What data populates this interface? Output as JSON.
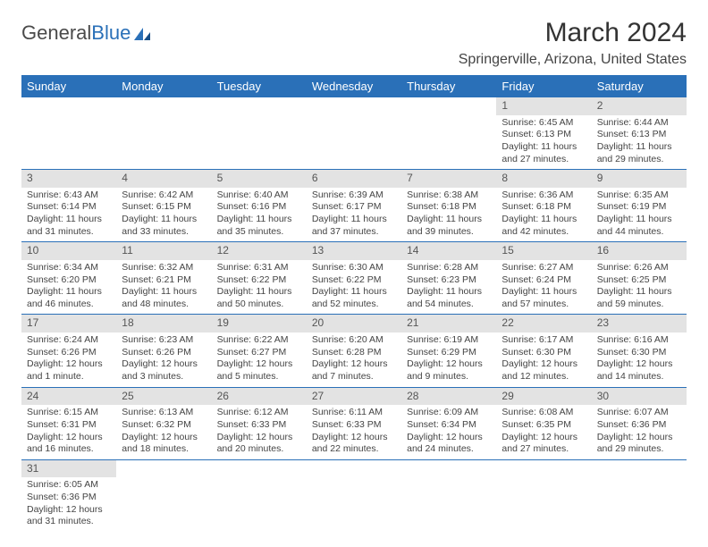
{
  "brand": {
    "general": "General",
    "blue": "Blue"
  },
  "title": "March 2024",
  "location": "Springerville, Arizona, United States",
  "columns": [
    "Sunday",
    "Monday",
    "Tuesday",
    "Wednesday",
    "Thursday",
    "Friday",
    "Saturday"
  ],
  "colors": {
    "header_bg": "#2a70b8",
    "header_text": "#ffffff",
    "daynum_bg": "#e3e3e3",
    "border": "#2a70b8",
    "text": "#444444"
  },
  "weeks": [
    [
      null,
      null,
      null,
      null,
      null,
      {
        "n": "1",
        "sr": "Sunrise: 6:45 AM",
        "ss": "Sunset: 6:13 PM",
        "dl1": "Daylight: 11 hours",
        "dl2": "and 27 minutes."
      },
      {
        "n": "2",
        "sr": "Sunrise: 6:44 AM",
        "ss": "Sunset: 6:13 PM",
        "dl1": "Daylight: 11 hours",
        "dl2": "and 29 minutes."
      }
    ],
    [
      {
        "n": "3",
        "sr": "Sunrise: 6:43 AM",
        "ss": "Sunset: 6:14 PM",
        "dl1": "Daylight: 11 hours",
        "dl2": "and 31 minutes."
      },
      {
        "n": "4",
        "sr": "Sunrise: 6:42 AM",
        "ss": "Sunset: 6:15 PM",
        "dl1": "Daylight: 11 hours",
        "dl2": "and 33 minutes."
      },
      {
        "n": "5",
        "sr": "Sunrise: 6:40 AM",
        "ss": "Sunset: 6:16 PM",
        "dl1": "Daylight: 11 hours",
        "dl2": "and 35 minutes."
      },
      {
        "n": "6",
        "sr": "Sunrise: 6:39 AM",
        "ss": "Sunset: 6:17 PM",
        "dl1": "Daylight: 11 hours",
        "dl2": "and 37 minutes."
      },
      {
        "n": "7",
        "sr": "Sunrise: 6:38 AM",
        "ss": "Sunset: 6:18 PM",
        "dl1": "Daylight: 11 hours",
        "dl2": "and 39 minutes."
      },
      {
        "n": "8",
        "sr": "Sunrise: 6:36 AM",
        "ss": "Sunset: 6:18 PM",
        "dl1": "Daylight: 11 hours",
        "dl2": "and 42 minutes."
      },
      {
        "n": "9",
        "sr": "Sunrise: 6:35 AM",
        "ss": "Sunset: 6:19 PM",
        "dl1": "Daylight: 11 hours",
        "dl2": "and 44 minutes."
      }
    ],
    [
      {
        "n": "10",
        "sr": "Sunrise: 6:34 AM",
        "ss": "Sunset: 6:20 PM",
        "dl1": "Daylight: 11 hours",
        "dl2": "and 46 minutes."
      },
      {
        "n": "11",
        "sr": "Sunrise: 6:32 AM",
        "ss": "Sunset: 6:21 PM",
        "dl1": "Daylight: 11 hours",
        "dl2": "and 48 minutes."
      },
      {
        "n": "12",
        "sr": "Sunrise: 6:31 AM",
        "ss": "Sunset: 6:22 PM",
        "dl1": "Daylight: 11 hours",
        "dl2": "and 50 minutes."
      },
      {
        "n": "13",
        "sr": "Sunrise: 6:30 AM",
        "ss": "Sunset: 6:22 PM",
        "dl1": "Daylight: 11 hours",
        "dl2": "and 52 minutes."
      },
      {
        "n": "14",
        "sr": "Sunrise: 6:28 AM",
        "ss": "Sunset: 6:23 PM",
        "dl1": "Daylight: 11 hours",
        "dl2": "and 54 minutes."
      },
      {
        "n": "15",
        "sr": "Sunrise: 6:27 AM",
        "ss": "Sunset: 6:24 PM",
        "dl1": "Daylight: 11 hours",
        "dl2": "and 57 minutes."
      },
      {
        "n": "16",
        "sr": "Sunrise: 6:26 AM",
        "ss": "Sunset: 6:25 PM",
        "dl1": "Daylight: 11 hours",
        "dl2": "and 59 minutes."
      }
    ],
    [
      {
        "n": "17",
        "sr": "Sunrise: 6:24 AM",
        "ss": "Sunset: 6:26 PM",
        "dl1": "Daylight: 12 hours",
        "dl2": "and 1 minute."
      },
      {
        "n": "18",
        "sr": "Sunrise: 6:23 AM",
        "ss": "Sunset: 6:26 PM",
        "dl1": "Daylight: 12 hours",
        "dl2": "and 3 minutes."
      },
      {
        "n": "19",
        "sr": "Sunrise: 6:22 AM",
        "ss": "Sunset: 6:27 PM",
        "dl1": "Daylight: 12 hours",
        "dl2": "and 5 minutes."
      },
      {
        "n": "20",
        "sr": "Sunrise: 6:20 AM",
        "ss": "Sunset: 6:28 PM",
        "dl1": "Daylight: 12 hours",
        "dl2": "and 7 minutes."
      },
      {
        "n": "21",
        "sr": "Sunrise: 6:19 AM",
        "ss": "Sunset: 6:29 PM",
        "dl1": "Daylight: 12 hours",
        "dl2": "and 9 minutes."
      },
      {
        "n": "22",
        "sr": "Sunrise: 6:17 AM",
        "ss": "Sunset: 6:30 PM",
        "dl1": "Daylight: 12 hours",
        "dl2": "and 12 minutes."
      },
      {
        "n": "23",
        "sr": "Sunrise: 6:16 AM",
        "ss": "Sunset: 6:30 PM",
        "dl1": "Daylight: 12 hours",
        "dl2": "and 14 minutes."
      }
    ],
    [
      {
        "n": "24",
        "sr": "Sunrise: 6:15 AM",
        "ss": "Sunset: 6:31 PM",
        "dl1": "Daylight: 12 hours",
        "dl2": "and 16 minutes."
      },
      {
        "n": "25",
        "sr": "Sunrise: 6:13 AM",
        "ss": "Sunset: 6:32 PM",
        "dl1": "Daylight: 12 hours",
        "dl2": "and 18 minutes."
      },
      {
        "n": "26",
        "sr": "Sunrise: 6:12 AM",
        "ss": "Sunset: 6:33 PM",
        "dl1": "Daylight: 12 hours",
        "dl2": "and 20 minutes."
      },
      {
        "n": "27",
        "sr": "Sunrise: 6:11 AM",
        "ss": "Sunset: 6:33 PM",
        "dl1": "Daylight: 12 hours",
        "dl2": "and 22 minutes."
      },
      {
        "n": "28",
        "sr": "Sunrise: 6:09 AM",
        "ss": "Sunset: 6:34 PM",
        "dl1": "Daylight: 12 hours",
        "dl2": "and 24 minutes."
      },
      {
        "n": "29",
        "sr": "Sunrise: 6:08 AM",
        "ss": "Sunset: 6:35 PM",
        "dl1": "Daylight: 12 hours",
        "dl2": "and 27 minutes."
      },
      {
        "n": "30",
        "sr": "Sunrise: 6:07 AM",
        "ss": "Sunset: 6:36 PM",
        "dl1": "Daylight: 12 hours",
        "dl2": "and 29 minutes."
      }
    ],
    [
      {
        "n": "31",
        "sr": "Sunrise: 6:05 AM",
        "ss": "Sunset: 6:36 PM",
        "dl1": "Daylight: 12 hours",
        "dl2": "and 31 minutes."
      },
      null,
      null,
      null,
      null,
      null,
      null
    ]
  ]
}
